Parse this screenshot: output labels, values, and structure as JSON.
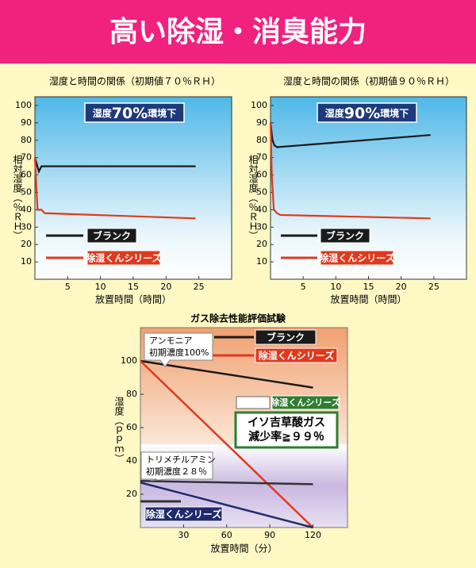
{
  "header": {
    "title": "高い除湿・消臭能力"
  },
  "chart_data": [
    {
      "type": "line",
      "title": "湿度と時間の関係（初期値７０％ＲＨ）",
      "x_label": "放置時間（時間）",
      "y_label": "相対湿度（％ＲＨ）",
      "annotation": [
        "湿度",
        "70%",
        "環境下"
      ],
      "xlim": [
        0,
        30
      ],
      "xticks": [
        5,
        10,
        15,
        20,
        25
      ],
      "ylim": [
        0,
        105
      ],
      "yticks": [
        10,
        20,
        30,
        40,
        50,
        60,
        70,
        80,
        90,
        100
      ],
      "series": [
        {
          "name": "ブランク",
          "color": "#1a1a1a",
          "x": [
            0,
            0.3,
            0.6,
            1,
            24.5
          ],
          "values": [
            70,
            66,
            62,
            65,
            65
          ]
        },
        {
          "name": "除湿くんシリーズ",
          "color": "#e03a1e",
          "x": [
            0,
            0.2,
            0.4,
            1,
            1.5,
            24.5
          ],
          "values": [
            70,
            55,
            40,
            40,
            38,
            35
          ]
        }
      ]
    },
    {
      "type": "line",
      "title": "湿度と時間の関係（初期値９０％ＲＨ）",
      "x_label": "放置時間（時間）",
      "y_label": "相対湿度（％ＲＨ）",
      "annotation": [
        "湿度",
        "90%",
        "環境下"
      ],
      "xlim": [
        0,
        30
      ],
      "xticks": [
        5,
        10,
        15,
        20,
        25
      ],
      "ylim": [
        0,
        105
      ],
      "yticks": [
        10,
        20,
        30,
        40,
        50,
        60,
        70,
        80,
        90,
        100
      ],
      "series": [
        {
          "name": "ブランク",
          "color": "#1a1a1a",
          "x": [
            0,
            0.3,
            0.6,
            1,
            24.5
          ],
          "values": [
            90,
            80,
            77,
            76,
            83
          ]
        },
        {
          "name": "除湿くんシリーズ",
          "color": "#e03a1e",
          "x": [
            0,
            0.2,
            0.5,
            1,
            1.5,
            24.5
          ],
          "values": [
            90,
            60,
            40,
            38,
            37,
            35
          ]
        }
      ]
    },
    {
      "type": "line",
      "title": "ガス除去性能評価試験",
      "x_label": "放置時間（分）",
      "y_label": "湿度（ｐｐｍ）",
      "annotations": [
        [
          "アンモニア",
          "初期濃度100%"
        ],
        [
          "トリメチルアミン",
          "初期濃度２８％"
        ]
      ],
      "callout": [
        "イソ吉草酸ガス",
        "減少率≧９９％"
      ],
      "extra_legend": {
        "name": "除湿くんシリーズ",
        "color": "#2e7d32"
      },
      "xlim": [
        0,
        144
      ],
      "xticks": [
        30,
        60,
        90,
        120
      ],
      "ylim": [
        0,
        120
      ],
      "yticks": [
        20,
        40,
        60,
        80,
        100
      ],
      "series": [
        {
          "name": "ブランク",
          "color": "#1a1a1a",
          "x": [
            0,
            120
          ],
          "values": [
            100,
            84
          ]
        },
        {
          "name": "除湿くんシリーズ",
          "color": "#e03a1e",
          "x": [
            0,
            120
          ],
          "values": [
            100,
            0
          ]
        },
        {
          "color": "#333333",
          "x": [
            0,
            120
          ],
          "values": [
            28,
            26
          ]
        },
        {
          "name": "除湿くんシリーズ",
          "color": "#1f2a6b",
          "x": [
            0,
            120
          ],
          "values": [
            27,
            0
          ]
        }
      ]
    }
  ]
}
